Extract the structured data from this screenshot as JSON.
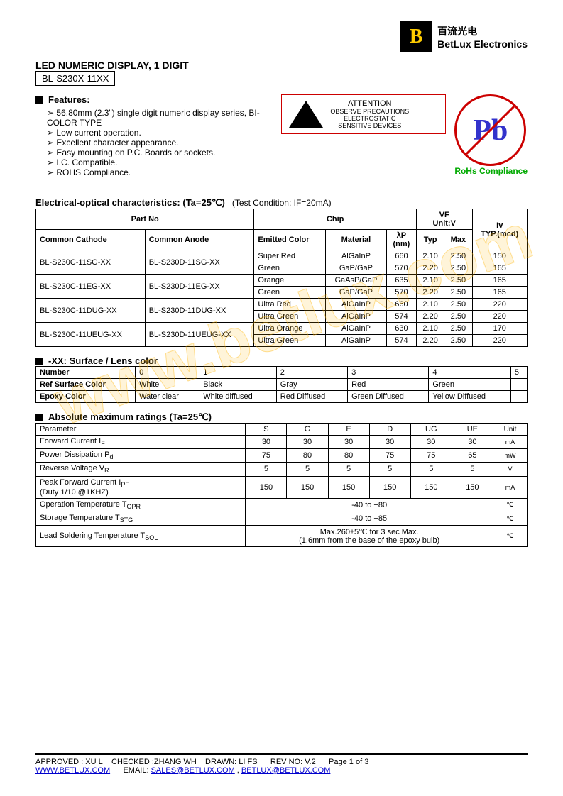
{
  "company": {
    "cn": "百流光电",
    "en": "BetLux Electronics",
    "logo": "B"
  },
  "title": "LED NUMERIC DISPLAY, 1 DIGIT",
  "partNo": "BL-S230X-11XX",
  "featuresLabel": "Features:",
  "features": [
    "56.80mm (2.3\") single digit numeric display series, BI-COLOR TYPE",
    "Low current operation.",
    "Excellent character appearance.",
    "Easy mounting on P.C. Boards or sockets.",
    "I.C. Compatible.",
    "ROHS Compliance."
  ],
  "esd": {
    "attention": "ATTENTION",
    "text1": "OBSERVE PRECAUTIONS",
    "text2": "ELECTROSTATIC",
    "text3": "SENSITIVE DEVICES"
  },
  "rohs": {
    "pb": "Pb",
    "label": "RoHs Compliance"
  },
  "charTitle": "Electrical-optical characteristics: (Ta=25℃)",
  "testCond": "(Test Condition: IF=20mA)",
  "charHeaders": {
    "partNo": "Part No",
    "chip": "Chip",
    "vf": "VF",
    "vfUnit": "Unit:V",
    "iv": "Iv",
    "cathode": "Common Cathode",
    "anode": "Common Anode",
    "emitted": "Emitted Color",
    "material": "Material",
    "lp": "λP",
    "lpUnit": "(nm)",
    "typ": "Typ",
    "max": "Max",
    "typMcd": "TYP.(mcd)"
  },
  "charRows": [
    {
      "cathode": "BL-S230C-11SG-XX",
      "anode": "BL-S230D-11SG-XX",
      "color": "Super Red",
      "mat": "AlGaInP",
      "lp": "660",
      "typ": "2.10",
      "max": "2.50",
      "iv": "150"
    },
    {
      "cathode": "",
      "anode": "",
      "color": "Green",
      "mat": "GaP/GaP",
      "lp": "570",
      "typ": "2.20",
      "max": "2.50",
      "iv": "165"
    },
    {
      "cathode": "BL-S230C-11EG-XX",
      "anode": "BL-S230D-11EG-XX",
      "color": "Orange",
      "mat": "GaAsP/GaP",
      "lp": "635",
      "typ": "2.10",
      "max": "2.50",
      "iv": "165"
    },
    {
      "cathode": "",
      "anode": "",
      "color": "Green",
      "mat": "GaP/GaP",
      "lp": "570",
      "typ": "2.20",
      "max": "2.50",
      "iv": "165"
    },
    {
      "cathode": "BL-S230C-11DUG-XX",
      "anode": "BL-S230D-11DUG-XX",
      "color": "Ultra Red",
      "mat": "AlGaInP",
      "lp": "660",
      "typ": "2.10",
      "max": "2.50",
      "iv": "220"
    },
    {
      "cathode": "",
      "anode": "",
      "color": "Ultra Green",
      "mat": "AlGaInP",
      "lp": "574",
      "typ": "2.20",
      "max": "2.50",
      "iv": "220"
    },
    {
      "cathode": "BL-S230C-11UEUG-XX",
      "anode": "BL-S230D-11UEUG-XX",
      "color": "Ultra Orange",
      "mat": "AlGaInP",
      "lp": "630",
      "typ": "2.10",
      "max": "2.50",
      "iv": "170"
    },
    {
      "cathode": "",
      "anode": "",
      "color": "Ultra Green",
      "mat": "AlGaInP",
      "lp": "574",
      "typ": "2.20",
      "max": "2.50",
      "iv": "220"
    }
  ],
  "lensTitle": "-XX: Surface / Lens color",
  "lensHeaders": [
    "Number",
    "0",
    "1",
    "2",
    "3",
    "4",
    "5"
  ],
  "lensRows": [
    {
      "label": "Ref Surface Color",
      "v": [
        "White",
        "Black",
        "Gray",
        "Red",
        "Green",
        ""
      ]
    },
    {
      "label": "Epoxy Color",
      "v": [
        "Water clear",
        "White diffused",
        "Red Diffused",
        "Green Diffused",
        "Yellow Diffused",
        ""
      ]
    }
  ],
  "maxTitle": "Absolute maximum ratings (Ta=25℃)",
  "maxHeaders": {
    "param": "Parameter",
    "cols": [
      "S",
      "G",
      "E",
      "D",
      "UG",
      "UE"
    ],
    "unit": "Unit"
  },
  "maxRows": [
    {
      "param": "Forward Current I",
      "sub": "F",
      "v": [
        "30",
        "30",
        "30",
        "30",
        "30",
        "30"
      ],
      "unit": "mA"
    },
    {
      "param": "Power Dissipation P",
      "sub": "d",
      "v": [
        "75",
        "80",
        "80",
        "75",
        "75",
        "65"
      ],
      "unit": "mW"
    },
    {
      "param": "Reverse Voltage V",
      "sub": "R",
      "v": [
        "5",
        "5",
        "5",
        "5",
        "5",
        "5"
      ],
      "unit": "V"
    },
    {
      "param": "Peak Forward Current I",
      "sub": "PF",
      "extra": "(Duty 1/10 @1KHZ)",
      "v": [
        "150",
        "150",
        "150",
        "150",
        "150",
        "150"
      ],
      "unit": "mA"
    },
    {
      "param": "Operation Temperature T",
      "sub": "OPR",
      "span": "-40 to +80",
      "unit": "℃"
    },
    {
      "param": "Storage Temperature T",
      "sub": "STG",
      "span": "-40 to +85",
      "unit": "℃"
    },
    {
      "param": "Lead Soldering Temperature T",
      "sub": "SOL",
      "span": "Max.260±5℃   for 3 sec Max.\n(1.6mm from the base of the epoxy bulb)",
      "unit": "℃"
    }
  ],
  "footer": {
    "approved": "APPROVED : XU L",
    "checked": "CHECKED :ZHANG WH",
    "drawn": "DRAWN: LI FS",
    "rev": "REV NO: V.2",
    "page": "Page 1 of 3",
    "url": "WWW.BETLUX.COM",
    "emailLabel": "EMAIL:",
    "email1": "SALES@BETLUX.COM",
    "email2": "BETLUX@BETLUX.COM"
  }
}
